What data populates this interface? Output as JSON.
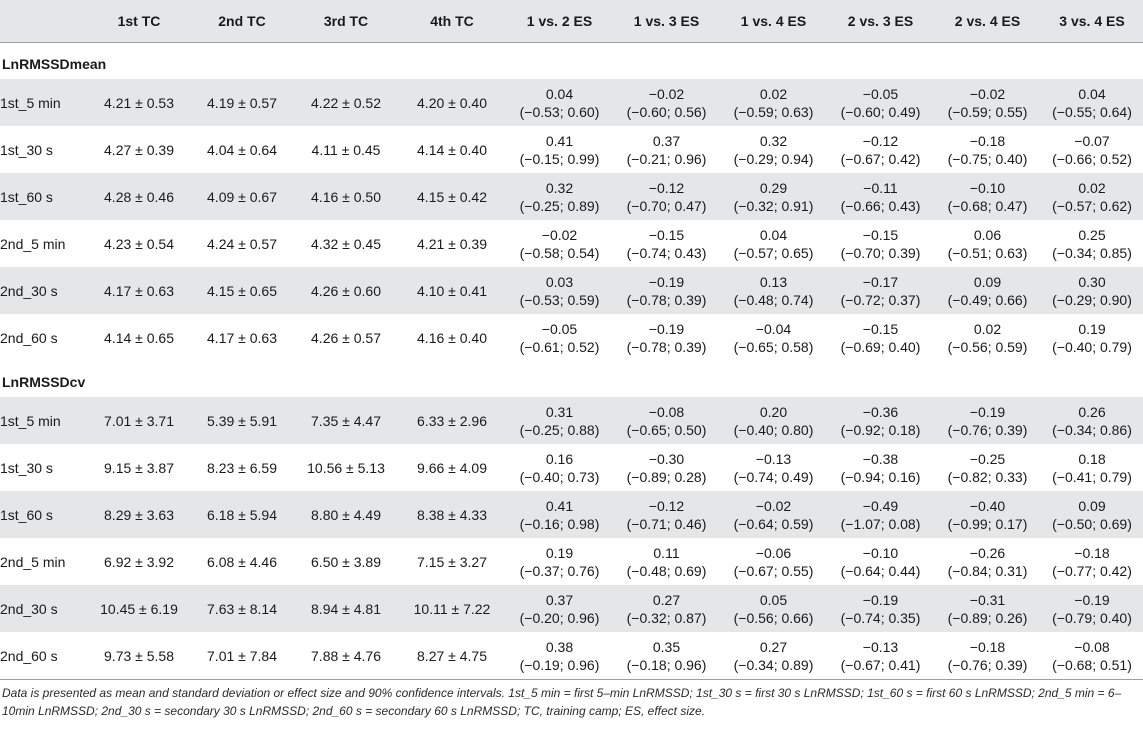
{
  "headers": [
    "",
    "1st TC",
    "2nd TC",
    "3rd TC",
    "4th TC",
    "1 vs. 2 ES",
    "1 vs. 3 ES",
    "1 vs. 4 ES",
    "2 vs. 3 ES",
    "2 vs. 4 ES",
    "3 vs. 4 ES"
  ],
  "groups": [
    {
      "title": "LnRMSSDmean",
      "rows": [
        {
          "label": "1st_5 min",
          "tc": [
            "4.21 ± 0.53",
            "4.19 ± 0.57",
            "4.22 ± 0.52",
            "4.20 ± 0.40"
          ],
          "es": [
            [
              "0.04",
              "(−0.53; 0.60)"
            ],
            [
              "−0.02",
              "(−0.60; 0.56)"
            ],
            [
              "0.02",
              "(−0.59; 0.63)"
            ],
            [
              "−0.05",
              "(−0.60; 0.49)"
            ],
            [
              "−0.02",
              "(−0.59; 0.55)"
            ],
            [
              "0.04",
              "(−0.55; 0.64)"
            ]
          ]
        },
        {
          "label": "1st_30 s",
          "tc": [
            "4.27 ± 0.39",
            "4.04 ± 0.64",
            "4.11 ± 0.45",
            "4.14 ± 0.40"
          ],
          "es": [
            [
              "0.41",
              "(−0.15; 0.99)"
            ],
            [
              "0.37",
              "(−0.21; 0.96)"
            ],
            [
              "0.32",
              "(−0.29; 0.94)"
            ],
            [
              "−0.12",
              "(−0.67; 0.42)"
            ],
            [
              "−0.18",
              "(−0.75; 0.40)"
            ],
            [
              "−0.07",
              "(−0.66; 0.52)"
            ]
          ]
        },
        {
          "label": "1st_60 s",
          "tc": [
            "4.28 ± 0.46",
            "4.09 ± 0.67",
            "4.16 ± 0.50",
            "4.15 ± 0.42"
          ],
          "es": [
            [
              "0.32",
              "(−0.25; 0.89)"
            ],
            [
              "−0.12",
              "(−0.70; 0.47)"
            ],
            [
              "0.29",
              "(−0.32; 0.91)"
            ],
            [
              "−0.11",
              "(−0.66; 0.43)"
            ],
            [
              "−0.10",
              "(−0.68; 0.47)"
            ],
            [
              "0.02",
              "(−0.57; 0.62)"
            ]
          ]
        },
        {
          "label": "2nd_5 min",
          "tc": [
            "4.23 ± 0.54",
            "4.24 ± 0.57",
            "4.32 ± 0.45",
            "4.21 ± 0.39"
          ],
          "es": [
            [
              "−0.02",
              "(−0.58; 0.54)"
            ],
            [
              "−0.15",
              "(−0.74; 0.43)"
            ],
            [
              "0.04",
              "(−0.57; 0.65)"
            ],
            [
              "−0.15",
              "(−0.70; 0.39)"
            ],
            [
              "0.06",
              "(−0.51; 0.63)"
            ],
            [
              "0.25",
              "(−0.34; 0.85)"
            ]
          ]
        },
        {
          "label": "2nd_30 s",
          "tc": [
            "4.17 ± 0.63",
            "4.15 ± 0.65",
            "4.26 ± 0.60",
            "4.10 ± 0.41"
          ],
          "es": [
            [
              "0.03",
              "(−0.53; 0.59)"
            ],
            [
              "−0.19",
              "(−0.78; 0.39)"
            ],
            [
              "0.13",
              "(−0.48; 0.74)"
            ],
            [
              "−0.17",
              "(−0.72; 0.37)"
            ],
            [
              "0.09",
              "(−0.49; 0.66)"
            ],
            [
              "0.30",
              "(−0.29; 0.90)"
            ]
          ]
        },
        {
          "label": "2nd_60 s",
          "tc": [
            "4.14 ± 0.65",
            "4.17 ± 0.63",
            "4.26 ± 0.57",
            "4.16 ± 0.40"
          ],
          "es": [
            [
              "−0.05",
              "(−0.61; 0.52)"
            ],
            [
              "−0.19",
              "(−0.78; 0.39)"
            ],
            [
              "−0.04",
              "(−0.65; 0.58)"
            ],
            [
              "−0.15",
              "(−0.69; 0.40)"
            ],
            [
              "0.02",
              "(−0.56; 0.59)"
            ],
            [
              "0.19",
              "(−0.40; 0.79)"
            ]
          ]
        }
      ]
    },
    {
      "title": "LnRMSSDcv",
      "rows": [
        {
          "label": "1st_5 min",
          "tc": [
            "7.01 ± 3.71",
            "5.39 ± 5.91",
            "7.35 ± 4.47",
            "6.33 ± 2.96"
          ],
          "es": [
            [
              "0.31",
              "(−0.25; 0.88)"
            ],
            [
              "−0.08",
              "(−0.65; 0.50)"
            ],
            [
              "0.20",
              "(−0.40; 0.80)"
            ],
            [
              "−0.36",
              "(−0.92; 0.18)"
            ],
            [
              "−0.19",
              "(−0.76; 0.39)"
            ],
            [
              "0.26",
              "(−0.34; 0.86)"
            ]
          ]
        },
        {
          "label": "1st_30 s",
          "tc": [
            "9.15 ± 3.87",
            "8.23 ± 6.59",
            "10.56 ± 5.13",
            "9.66 ± 4.09"
          ],
          "es": [
            [
              "0.16",
              "(−0.40; 0.73)"
            ],
            [
              "−0.30",
              "(−0.89; 0.28)"
            ],
            [
              "−0.13",
              "(−0.74; 0.49)"
            ],
            [
              "−0.38",
              "(−0.94; 0.16)"
            ],
            [
              "−0.25",
              "(−0.82; 0.33)"
            ],
            [
              "0.18",
              "(−0.41; 0.79)"
            ]
          ]
        },
        {
          "label": "1st_60 s",
          "tc": [
            "8.29 ± 3.63",
            "6.18 ± 5.94",
            "8.80 ± 4.49",
            "8.38 ± 4.33"
          ],
          "es": [
            [
              "0.41",
              "(−0.16; 0.98)"
            ],
            [
              "−0.12",
              "(−0.71; 0.46)"
            ],
            [
              "−0.02",
              "(−0.64; 0.59)"
            ],
            [
              "−0.49",
              "(−1.07; 0.08)"
            ],
            [
              "−0.40",
              "(−0.99; 0.17)"
            ],
            [
              "0.09",
              "(−0.50; 0.69)"
            ]
          ]
        },
        {
          "label": "2nd_5 min",
          "tc": [
            "6.92 ± 3.92",
            "6.08 ± 4.46",
            "6.50 ± 3.89",
            "7.15 ± 3.27"
          ],
          "es": [
            [
              "0.19",
              "(−0.37; 0.76)"
            ],
            [
              "0.11",
              "(−0.48; 0.69)"
            ],
            [
              "−0.06",
              "(−0.67; 0.55)"
            ],
            [
              "−0.10",
              "(−0.64; 0.44)"
            ],
            [
              "−0.26",
              "(−0.84; 0.31)"
            ],
            [
              "−0.18",
              "(−0.77; 0.42)"
            ]
          ]
        },
        {
          "label": "2nd_30 s",
          "tc": [
            "10.45 ± 6.19",
            "7.63 ± 8.14",
            "8.94 ± 4.81",
            "10.11 ± 7.22"
          ],
          "es": [
            [
              "0.37",
              "(−0.20; 0.96)"
            ],
            [
              "0.27",
              "(−0.32; 0.87)"
            ],
            [
              "0.05",
              "(−0.56; 0.66)"
            ],
            [
              "−0.19",
              "(−0.74; 0.35)"
            ],
            [
              "−0.31",
              "(−0.89; 0.26)"
            ],
            [
              "−0.19",
              "(−0.79; 0.40)"
            ]
          ]
        },
        {
          "label": "2nd_60 s",
          "tc": [
            "9.73 ± 5.58",
            "7.01 ± 7.84",
            "7.88 ± 4.76",
            "8.27 ± 4.75"
          ],
          "es": [
            [
              "0.38",
              "(−0.19; 0.96)"
            ],
            [
              "0.35",
              "(−0.18; 0.96)"
            ],
            [
              "0.27",
              "(−0.34; 0.89)"
            ],
            [
              "−0.13",
              "(−0.67; 0.41)"
            ],
            [
              "−0.18",
              "(−0.76; 0.39)"
            ],
            [
              "−0.08",
              "(−0.68; 0.51)"
            ]
          ]
        }
      ]
    }
  ],
  "footnote": "Data is presented as mean and standard deviation or effect size and 90% confidence intervals. 1st_5 min = first 5–min LnRMSSD; 1st_30 s = first 30 s LnRMSSD; 1st_60 s = first 60 s LnRMSSD; 2nd_5 min = 6–10min LnRMSSD; 2nd_30 s = secondary 30 s LnRMSSD; 2nd_60 s = secondary 60 s LnRMSSD; TC, training camp; ES, effect size.",
  "colors": {
    "shade": "#e4e6e7",
    "rule": "#9aa0a6",
    "text": "#1a1a1a"
  }
}
